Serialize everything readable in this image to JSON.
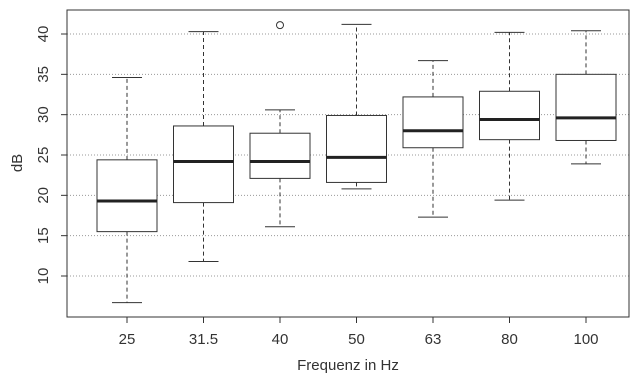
{
  "chart_data": {
    "type": "box",
    "title": "",
    "xlabel": "Frequenz in Hz",
    "ylabel": "dB",
    "ylim": [
      5,
      43
    ],
    "yticks": [
      10,
      15,
      20,
      25,
      30,
      35,
      40
    ],
    "grid": "horizontal dotted",
    "legend": "none",
    "categories": [
      "25",
      "31.5",
      "40",
      "50",
      "63",
      "80",
      "100"
    ],
    "boxes": [
      {
        "category": "25",
        "whisker_low": 6.7,
        "q1": 15.5,
        "median": 19.3,
        "q3": 24.4,
        "whisker_high": 34.6,
        "outliers": []
      },
      {
        "category": "31.5",
        "whisker_low": 11.8,
        "q1": 19.1,
        "median": 24.2,
        "q3": 28.6,
        "whisker_high": 40.3,
        "outliers": []
      },
      {
        "category": "40",
        "whisker_low": 16.1,
        "q1": 22.1,
        "median": 24.2,
        "q3": 27.7,
        "whisker_high": 30.6,
        "outliers": [
          41.1
        ]
      },
      {
        "category": "50",
        "whisker_low": 20.8,
        "q1": 21.6,
        "median": 24.7,
        "q3": 29.9,
        "whisker_high": 41.2,
        "outliers": []
      },
      {
        "category": "63",
        "whisker_low": 17.3,
        "q1": 25.9,
        "median": 28.0,
        "q3": 32.2,
        "whisker_high": 36.7,
        "outliers": []
      },
      {
        "category": "80",
        "whisker_low": 19.4,
        "q1": 26.9,
        "median": 29.4,
        "q3": 32.9,
        "whisker_high": 40.2,
        "outliers": []
      },
      {
        "category": "100",
        "whisker_low": 23.9,
        "q1": 26.8,
        "median": 29.6,
        "q3": 35.0,
        "whisker_high": 40.4,
        "outliers": []
      }
    ],
    "colors": {
      "box_fill": "#ffffff",
      "box_stroke": "#333333",
      "median": "#222222",
      "grid": "#999999",
      "text": "#333333"
    }
  }
}
